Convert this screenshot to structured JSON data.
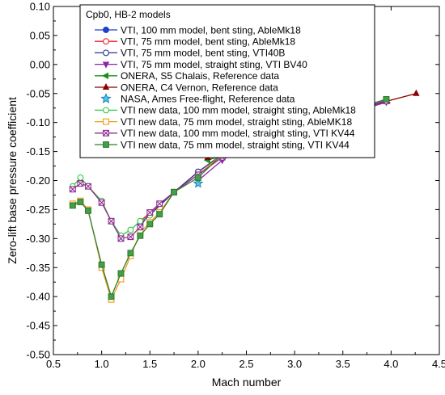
{
  "chart_data": {
    "type": "line",
    "xlabel": "Mach number",
    "ylabel": "Zero-lift base pressure coefficient",
    "xlim": [
      0.5,
      4.5
    ],
    "ylim": [
      -0.5,
      0.1
    ],
    "xticks": [
      "0.5",
      "1.0",
      "1.5",
      "2.0",
      "2.5",
      "3.0",
      "3.5",
      "4.0",
      "4.5"
    ],
    "yticks": [
      "-0.50",
      "-0.45",
      "-0.40",
      "-0.35",
      "-0.30",
      "-0.25",
      "-0.20",
      "-0.15",
      "-0.10",
      "-0.05",
      "0.00",
      "0.05",
      "0.10"
    ],
    "grid": false,
    "legend_title": "Cpb0, HB-2 models",
    "legend_position": "top-left",
    "series": [
      {
        "name": "VTI, 100 mm model, bent sting, AbleMk18",
        "color": "#1f3fcc",
        "marker": "circle",
        "filled": true,
        "line": true,
        "x": [
          2.5
        ],
        "y": [
          -0.13
        ]
      },
      {
        "name": "VTI, 75 mm model, bent sting, AbleMk18",
        "color": "#e8232a",
        "marker": "circle",
        "filled": false,
        "line": true,
        "x": [
          1.4,
          1.75,
          2.0,
          2.25,
          2.5,
          3.0,
          3.23
        ],
        "y": [
          -0.27,
          -0.22,
          -0.185,
          -0.155,
          -0.13,
          -0.105,
          -0.09
        ]
      },
      {
        "name": "VTI, 75 mm model, bent sting, VTI40B",
        "color": "#283593",
        "marker": "circle",
        "filled": false,
        "line": true,
        "x": [
          1.4,
          1.75,
          2.0,
          2.25,
          2.5,
          3.0,
          3.5,
          3.95
        ],
        "y": [
          -0.275,
          -0.22,
          -0.185,
          -0.155,
          -0.13,
          -0.11,
          -0.085,
          -0.062
        ]
      },
      {
        "name": "VTI, 75 mm model, straight sting, VTI BV40",
        "color": "#8e24aa",
        "marker": "triangle-down",
        "filled": true,
        "line": true,
        "x": [
          2.0,
          2.25,
          2.5,
          3.0,
          3.5,
          3.95
        ],
        "y": [
          -0.2,
          -0.165,
          -0.14,
          -0.115,
          -0.088,
          -0.065
        ]
      },
      {
        "name": "ONERA, S5 Chalais, Reference data",
        "color": "#1b8f1b",
        "marker": "triangle-left",
        "filled": true,
        "line": true,
        "x": [
          2.1,
          2.55,
          3.1
        ],
        "y": [
          -0.165,
          -0.14,
          -0.112
        ]
      },
      {
        "name": "ONERA, C4 Vernon, Reference data",
        "color": "#8b0000",
        "marker": "triangle-up",
        "filled": true,
        "line": true,
        "x": [
          2.1,
          2.5,
          3.0,
          3.5,
          3.96,
          4.26
        ],
        "y": [
          -0.16,
          -0.135,
          -0.11,
          -0.085,
          -0.063,
          -0.05
        ]
      },
      {
        "name": "NASA, Ames Free-flight, Reference data",
        "color": "#1e88a8",
        "fill": "#4fc3f7",
        "marker": "star",
        "filled": true,
        "line": false,
        "x": [
          2.0
        ],
        "y": [
          -0.205
        ]
      },
      {
        "name": "VTI new data, 100 mm model, straight sting, AbleMk18",
        "color": "#2ecc40",
        "marker": "circle",
        "filled": false,
        "line": true,
        "x": [
          0.7,
          0.78,
          0.86,
          1.0,
          1.1,
          1.2,
          1.3,
          1.4,
          1.5
        ],
        "y": [
          -0.21,
          -0.195,
          -0.21,
          -0.235,
          -0.27,
          -0.295,
          -0.285,
          -0.27,
          -0.26
        ]
      },
      {
        "name": "VTI new data, 75 mm model, straight sting, AbleMK18",
        "color": "#f39c12",
        "marker": "square",
        "filled": false,
        "line": true,
        "x": [
          0.7,
          0.78,
          0.86,
          1.0,
          1.1,
          1.2,
          1.3,
          1.4,
          1.5,
          1.6,
          1.75,
          2.0,
          2.25,
          2.5,
          3.0,
          3.5,
          3.95
        ],
        "y": [
          -0.24,
          -0.235,
          -0.25,
          -0.35,
          -0.405,
          -0.37,
          -0.33,
          -0.29,
          -0.272,
          -0.255,
          -0.22,
          -0.19,
          -0.155,
          -0.135,
          -0.11,
          -0.082,
          -0.06
        ]
      },
      {
        "name": "VTI new data, 100 mm model, straight sting, VTI KV44",
        "color": "#8e2d8e",
        "marker": "x-square",
        "filled": false,
        "line": true,
        "x": [
          0.7,
          0.78,
          0.86,
          1.0,
          1.1,
          1.2,
          1.3,
          1.4,
          1.5,
          1.6,
          1.75,
          2.0,
          2.25,
          2.5,
          3.0,
          3.5,
          3.95
        ],
        "y": [
          -0.215,
          -0.205,
          -0.21,
          -0.238,
          -0.27,
          -0.3,
          -0.297,
          -0.28,
          -0.255,
          -0.24,
          -0.22,
          -0.19,
          -0.16,
          -0.135,
          -0.11,
          -0.085,
          -0.063
        ]
      },
      {
        "name": "VTI new data, 75 mm model, straight sting, VTI KV44",
        "color": "#2e7d32",
        "fill": "#43a047",
        "marker": "square",
        "filled": true,
        "line": true,
        "x": [
          0.7,
          0.78,
          0.86,
          1.0,
          1.1,
          1.2,
          1.3,
          1.4,
          1.5,
          1.6,
          1.75,
          2.0,
          2.25,
          2.5,
          3.0,
          3.5,
          3.95
        ],
        "y": [
          -0.243,
          -0.237,
          -0.252,
          -0.345,
          -0.4,
          -0.36,
          -0.325,
          -0.295,
          -0.275,
          -0.258,
          -0.22,
          -0.195,
          -0.155,
          -0.137,
          -0.113,
          -0.082,
          -0.06
        ]
      }
    ]
  }
}
